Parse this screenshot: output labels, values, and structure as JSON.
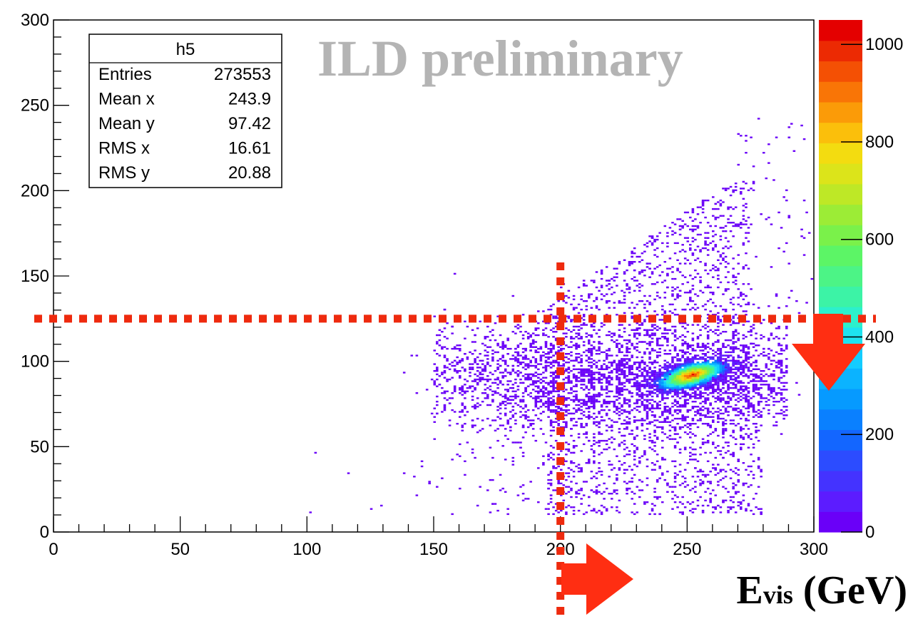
{
  "chart_data": {
    "type": "heatmap",
    "title": "",
    "xlabel": "",
    "ylabel": "",
    "xlim": [
      0,
      300
    ],
    "ylim": [
      0,
      300
    ],
    "x_ticks": [
      0,
      50,
      100,
      150,
      200,
      250,
      300
    ],
    "y_ticks": [
      0,
      50,
      100,
      150,
      200,
      250,
      300
    ],
    "z_ticks": [
      0,
      200,
      400,
      600,
      800,
      1000
    ],
    "zlim": [
      0,
      1050
    ],
    "palette": [
      "#6a00f8",
      "#5c1cff",
      "#4433ff",
      "#2c4cff",
      "#1366ff",
      "#0a80ff",
      "#069aff",
      "#0bb3ff",
      "#13ccff",
      "#1ee3f0",
      "#2cf0cc",
      "#3cf3a6",
      "#4cf486",
      "#5cf566",
      "#7af14a",
      "#9cec36",
      "#bee826",
      "#dce41a",
      "#f3dc10",
      "#fbbf0b",
      "#fb9b08",
      "#f97506",
      "#f45004",
      "#ec2a03",
      "#e40000"
    ],
    "peak": {
      "x": 252,
      "y": 92
    },
    "cut_lines": [
      {
        "orientation": "horizontal",
        "value": 125
      },
      {
        "orientation": "vertical",
        "value": 200
      }
    ]
  },
  "stats_box": {
    "name": "h5",
    "rows": [
      {
        "label": "Entries",
        "value": "273553"
      },
      {
        "label": "Mean x",
        "value": "243.9"
      },
      {
        "label": "Mean y",
        "value": "97.42"
      },
      {
        "label": "RMS x",
        "value": "16.61"
      },
      {
        "label": "RMS y",
        "value": "20.88"
      }
    ]
  },
  "watermark": "ILD preliminary",
  "x_axis_title": {
    "main": "E",
    "subscript": "vis",
    "unit": " (GeV)"
  },
  "colors": {
    "cut_line": "#ee2a0e",
    "arrow": "#ff2e12",
    "watermark": "#b4b4b4"
  }
}
